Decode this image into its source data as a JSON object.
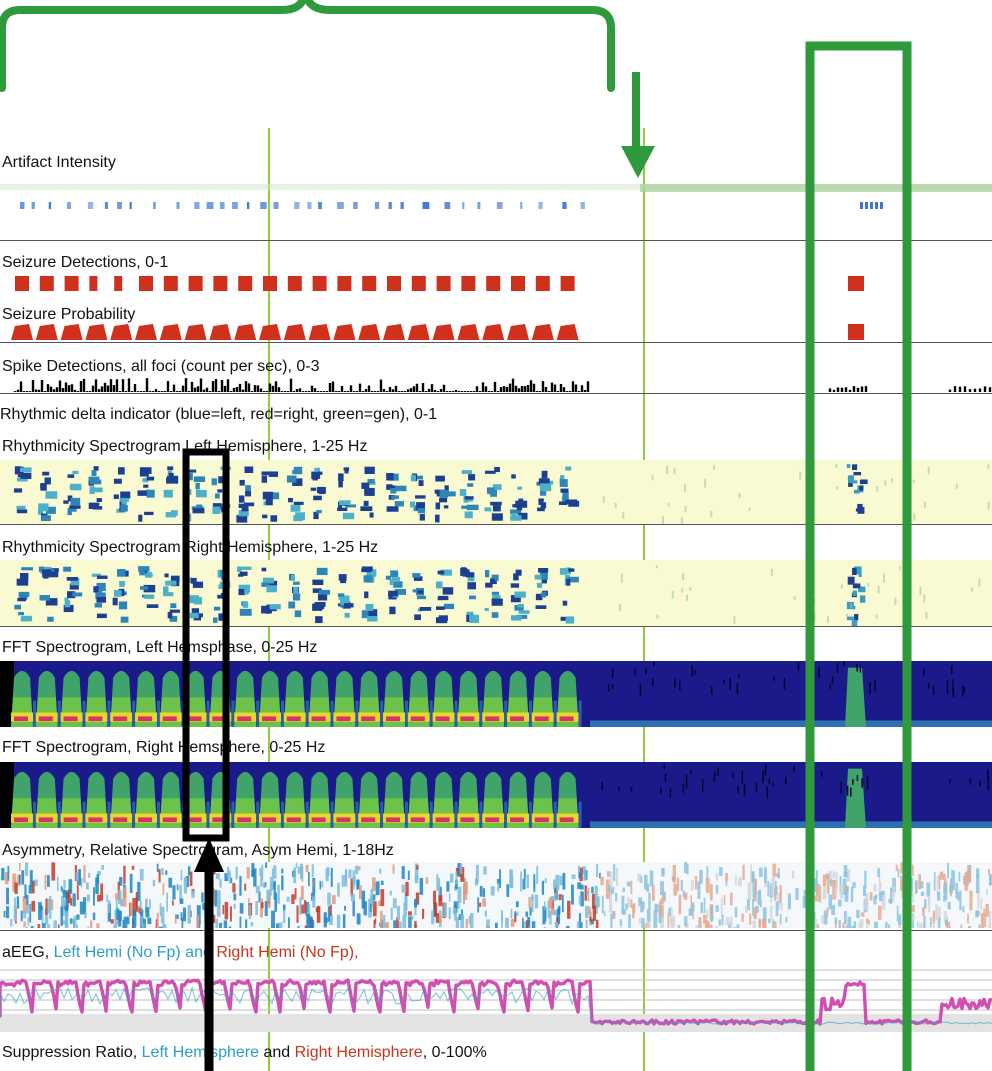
{
  "panels": {
    "artifact": "Artifact Intensity",
    "seizure_det": "Seizure Detections, 0-1",
    "seizure_prob": "Seizure Probability",
    "spike": "Spike Detections, all foci (count per sec), 0-3",
    "rhythmic_delta": "Rhythmic delta indicator (blue=left, red=right, green=gen), 0-1",
    "rhythm_left": "Rhythmicity Spectrogram Left Hemisphere, 1-25 Hz",
    "rhythm_right": "Rhythmicity Spectrogram Right Hemisphere, 1-25 Hz",
    "fft_left": "FFT Spectrogram, Left Hemsphase, 0-25 Hz",
    "fft_right": "FFT Spectrogram, Right Hemsphere, 0-25 Hz",
    "asym": "Asymmetry, Relative Spectrogram, Asym Hemi, 1-18Hz",
    "aeeg": {
      "prefix": "aEEG, ",
      "left": "Left Hemi (No Fp)",
      "and": " and ",
      "right": "Right Hemi (No Fp),"
    },
    "suppression": {
      "prefix": "Suppression Ratio, ",
      "left": "Left Hemisphere",
      "and": " and ",
      "right": "Right Hemisphere",
      "suffix": ", 0-100%"
    }
  },
  "colors": {
    "annotation_green": "#2e9a3c",
    "marker_line": "#8ccf3c",
    "seizure_red": "#d0311d",
    "fft_bg": "#1a1a8a",
    "rhythm_bg": "#fafad2",
    "aeeg_trace": "#d04fb0",
    "left_hemi_text": "#2a9fc8",
    "right_hemi_text": "#c8361c"
  },
  "annotations": {
    "brace": "green-bracket-over-seizure-period",
    "down_arrow": "green-arrow-pointing-down",
    "green_box": "green-rectangle-right",
    "black_box": "black-rectangle-left",
    "up_arrow": "black-arrow-pointing-up"
  }
}
